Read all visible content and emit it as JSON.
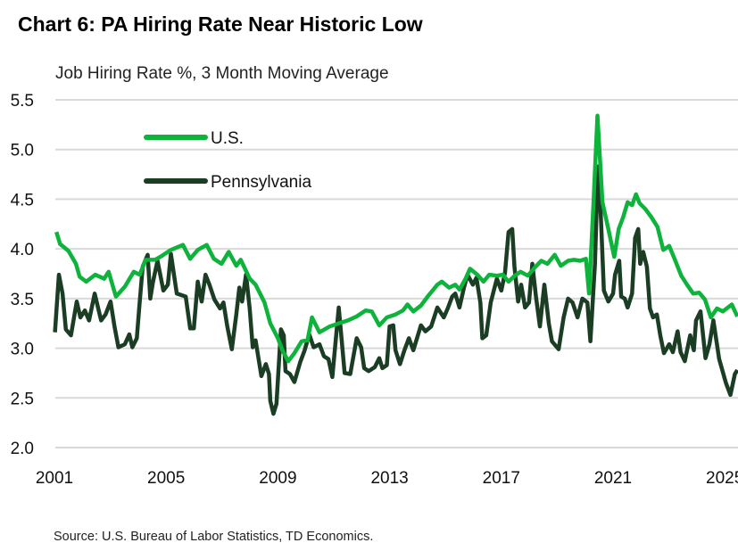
{
  "chart_data": {
    "type": "line",
    "title": "Chart 6: PA Hiring Rate Near Historic Low",
    "subtitle": "Job Hiring Rate %, 3 Month Moving Average",
    "source": "Source: U.S. Bureau of Labor Statistics, TD Economics.",
    "xlabel": "",
    "ylabel": "",
    "ylim": [
      2.0,
      5.5
    ],
    "yticks": [
      "5.5",
      "5.0",
      "4.5",
      "4.0",
      "3.5",
      "3.0",
      "2.5",
      "2.0"
    ],
    "xlim": [
      2001,
      2025.45
    ],
    "xticks": [
      "2001",
      "2005",
      "2009",
      "2013",
      "2017",
      "2021",
      "2025"
    ],
    "grid": "horizontal",
    "legend_position": "top-left",
    "series": [
      {
        "name": "U.S.",
        "color": "#0db33b",
        "points": [
          [
            2001.07,
            4.17
          ],
          [
            2001.2,
            4.05
          ],
          [
            2001.5,
            3.98
          ],
          [
            2001.77,
            3.85
          ],
          [
            2001.9,
            3.72
          ],
          [
            2002.14,
            3.67
          ],
          [
            2002.46,
            3.74
          ],
          [
            2002.78,
            3.7
          ],
          [
            2002.94,
            3.77
          ],
          [
            2003.2,
            3.52
          ],
          [
            2003.52,
            3.62
          ],
          [
            2003.84,
            3.77
          ],
          [
            2004.05,
            3.74
          ],
          [
            2004.27,
            3.89
          ],
          [
            2004.6,
            3.89
          ],
          [
            2004.85,
            3.93
          ],
          [
            2005.17,
            3.99
          ],
          [
            2005.6,
            4.04
          ],
          [
            2005.86,
            3.9
          ],
          [
            2006.13,
            3.99
          ],
          [
            2006.45,
            4.04
          ],
          [
            2006.71,
            3.9
          ],
          [
            2006.98,
            3.85
          ],
          [
            2007.24,
            3.97
          ],
          [
            2007.51,
            3.83
          ],
          [
            2007.67,
            3.89
          ],
          [
            2007.99,
            3.7
          ],
          [
            2008.2,
            3.64
          ],
          [
            2008.52,
            3.46
          ],
          [
            2008.73,
            3.25
          ],
          [
            2009.0,
            3.1
          ],
          [
            2009.16,
            2.98
          ],
          [
            2009.37,
            2.87
          ],
          [
            2009.59,
            2.95
          ],
          [
            2009.85,
            3.07
          ],
          [
            2010.06,
            3.08
          ],
          [
            2010.22,
            3.31
          ],
          [
            2010.49,
            3.16
          ],
          [
            2010.86,
            3.22
          ],
          [
            2011.18,
            3.25
          ],
          [
            2011.5,
            3.28
          ],
          [
            2011.82,
            3.32
          ],
          [
            2012.14,
            3.38
          ],
          [
            2012.36,
            3.37
          ],
          [
            2012.63,
            3.23
          ],
          [
            2012.9,
            3.31
          ],
          [
            2013.21,
            3.34
          ],
          [
            2013.48,
            3.38
          ],
          [
            2013.64,
            3.44
          ],
          [
            2013.85,
            3.37
          ],
          [
            2014.12,
            3.43
          ],
          [
            2014.39,
            3.53
          ],
          [
            2014.71,
            3.64
          ],
          [
            2014.87,
            3.67
          ],
          [
            2015.13,
            3.61
          ],
          [
            2015.35,
            3.64
          ],
          [
            2015.5,
            3.59
          ],
          [
            2015.72,
            3.7
          ],
          [
            2015.88,
            3.8
          ],
          [
            2016.14,
            3.74
          ],
          [
            2016.36,
            3.67
          ],
          [
            2016.57,
            3.74
          ],
          [
            2016.84,
            3.73
          ],
          [
            2017.05,
            3.74
          ],
          [
            2017.26,
            3.67
          ],
          [
            2017.48,
            3.73
          ],
          [
            2017.69,
            3.77
          ],
          [
            2017.95,
            3.73
          ],
          [
            2018.22,
            3.82
          ],
          [
            2018.43,
            3.88
          ],
          [
            2018.65,
            3.85
          ],
          [
            2018.91,
            3.94
          ],
          [
            2019.13,
            3.83
          ],
          [
            2019.39,
            3.88
          ],
          [
            2019.6,
            3.89
          ],
          [
            2019.82,
            3.88
          ],
          [
            2020.03,
            3.9
          ],
          [
            2020.14,
            3.55
          ],
          [
            2020.3,
            4.47
          ],
          [
            2020.44,
            5.34
          ],
          [
            2020.62,
            4.47
          ],
          [
            2020.83,
            4.2
          ],
          [
            2021.04,
            3.92
          ],
          [
            2021.2,
            4.2
          ],
          [
            2021.36,
            4.32
          ],
          [
            2021.52,
            4.47
          ],
          [
            2021.68,
            4.44
          ],
          [
            2021.82,
            4.55
          ],
          [
            2021.95,
            4.46
          ],
          [
            2022.16,
            4.4
          ],
          [
            2022.37,
            4.32
          ],
          [
            2022.59,
            4.22
          ],
          [
            2022.8,
            3.99
          ],
          [
            2023.01,
            4.03
          ],
          [
            2023.23,
            3.88
          ],
          [
            2023.44,
            3.73
          ],
          [
            2023.65,
            3.64
          ],
          [
            2023.87,
            3.55
          ],
          [
            2024.08,
            3.56
          ],
          [
            2024.29,
            3.49
          ],
          [
            2024.5,
            3.31
          ],
          [
            2024.72,
            3.4
          ],
          [
            2024.93,
            3.37
          ],
          [
            2025.25,
            3.44
          ],
          [
            2025.45,
            3.32
          ]
        ]
      },
      {
        "name": "Pennsylvania",
        "color": "#1a3d24",
        "points": [
          [
            2001.02,
            3.16
          ],
          [
            2001.16,
            3.74
          ],
          [
            2001.29,
            3.55
          ],
          [
            2001.41,
            3.19
          ],
          [
            2001.59,
            3.13
          ],
          [
            2001.8,
            3.47
          ],
          [
            2001.93,
            3.31
          ],
          [
            2002.09,
            3.38
          ],
          [
            2002.24,
            3.28
          ],
          [
            2002.44,
            3.55
          ],
          [
            2002.67,
            3.28
          ],
          [
            2002.83,
            3.34
          ],
          [
            2003.01,
            3.47
          ],
          [
            2003.15,
            3.22
          ],
          [
            2003.29,
            3.01
          ],
          [
            2003.52,
            3.04
          ],
          [
            2003.68,
            3.14
          ],
          [
            2003.79,
            3.01
          ],
          [
            2003.95,
            3.1
          ],
          [
            2004.05,
            3.46
          ],
          [
            2004.16,
            3.82
          ],
          [
            2004.34,
            3.94
          ],
          [
            2004.43,
            3.5
          ],
          [
            2004.53,
            3.67
          ],
          [
            2004.69,
            3.88
          ],
          [
            2004.9,
            3.58
          ],
          [
            2005.06,
            3.64
          ],
          [
            2005.17,
            3.95
          ],
          [
            2005.38,
            3.55
          ],
          [
            2005.7,
            3.52
          ],
          [
            2005.86,
            3.2
          ],
          [
            2005.99,
            3.2
          ],
          [
            2006.13,
            3.67
          ],
          [
            2006.27,
            3.47
          ],
          [
            2006.41,
            3.74
          ],
          [
            2006.55,
            3.64
          ],
          [
            2006.73,
            3.49
          ],
          [
            2006.93,
            3.4
          ],
          [
            2007.05,
            3.46
          ],
          [
            2007.19,
            3.22
          ],
          [
            2007.35,
            2.99
          ],
          [
            2007.51,
            3.34
          ],
          [
            2007.62,
            3.61
          ],
          [
            2007.72,
            3.47
          ],
          [
            2007.86,
            3.74
          ],
          [
            2007.99,
            3.4
          ],
          [
            2008.1,
            3.01
          ],
          [
            2008.2,
            3.08
          ],
          [
            2008.41,
            2.72
          ],
          [
            2008.57,
            2.84
          ],
          [
            2008.68,
            2.74
          ],
          [
            2008.73,
            2.47
          ],
          [
            2008.84,
            2.34
          ],
          [
            2008.95,
            2.44
          ],
          [
            2009.11,
            3.19
          ],
          [
            2009.21,
            3.13
          ],
          [
            2009.27,
            2.77
          ],
          [
            2009.43,
            2.74
          ],
          [
            2009.59,
            2.66
          ],
          [
            2009.8,
            2.86
          ],
          [
            2009.96,
            2.98
          ],
          [
            2010.12,
            3.14
          ],
          [
            2010.28,
            3.01
          ],
          [
            2010.49,
            3.04
          ],
          [
            2010.65,
            2.92
          ],
          [
            2010.81,
            2.89
          ],
          [
            2010.95,
            2.71
          ],
          [
            2011.18,
            3.41
          ],
          [
            2011.39,
            2.75
          ],
          [
            2011.59,
            2.74
          ],
          [
            2011.82,
            3.1
          ],
          [
            2011.98,
            3.01
          ],
          [
            2012.09,
            2.8
          ],
          [
            2012.25,
            2.77
          ],
          [
            2012.47,
            2.81
          ],
          [
            2012.63,
            2.9
          ],
          [
            2012.74,
            2.8
          ],
          [
            2012.9,
            2.83
          ],
          [
            2013.0,
            3.22
          ],
          [
            2013.13,
            3.23
          ],
          [
            2013.21,
            2.98
          ],
          [
            2013.37,
            2.84
          ],
          [
            2013.53,
            2.98
          ],
          [
            2013.69,
            3.1
          ],
          [
            2013.85,
            2.98
          ],
          [
            2014.12,
            3.23
          ],
          [
            2014.28,
            3.17
          ],
          [
            2014.49,
            3.22
          ],
          [
            2014.71,
            3.41
          ],
          [
            2014.94,
            3.31
          ],
          [
            2015.08,
            3.4
          ],
          [
            2015.24,
            3.52
          ],
          [
            2015.35,
            3.55
          ],
          [
            2015.5,
            3.41
          ],
          [
            2015.66,
            3.61
          ],
          [
            2015.79,
            3.74
          ],
          [
            2015.98,
            3.64
          ],
          [
            2016.11,
            3.71
          ],
          [
            2016.25,
            3.46
          ],
          [
            2016.32,
            3.1
          ],
          [
            2016.46,
            3.13
          ],
          [
            2016.62,
            3.46
          ],
          [
            2016.84,
            3.7
          ],
          [
            2017.0,
            3.58
          ],
          [
            2017.13,
            3.76
          ],
          [
            2017.26,
            4.17
          ],
          [
            2017.39,
            4.2
          ],
          [
            2017.47,
            3.82
          ],
          [
            2017.6,
            3.47
          ],
          [
            2017.71,
            3.64
          ],
          [
            2017.85,
            3.41
          ],
          [
            2017.99,
            3.46
          ],
          [
            2018.11,
            3.85
          ],
          [
            2018.24,
            3.52
          ],
          [
            2018.38,
            3.22
          ],
          [
            2018.54,
            3.64
          ],
          [
            2018.7,
            3.25
          ],
          [
            2018.81,
            3.07
          ],
          [
            2019.05,
            2.99
          ],
          [
            2019.23,
            3.31
          ],
          [
            2019.39,
            3.5
          ],
          [
            2019.55,
            3.46
          ],
          [
            2019.73,
            3.31
          ],
          [
            2019.9,
            3.5
          ],
          [
            2020.08,
            3.46
          ],
          [
            2020.19,
            3.07
          ],
          [
            2020.35,
            3.85
          ],
          [
            2020.46,
            4.83
          ],
          [
            2020.56,
            4.35
          ],
          [
            2020.67,
            3.58
          ],
          [
            2020.83,
            3.47
          ],
          [
            2021.0,
            3.55
          ],
          [
            2021.07,
            3.74
          ],
          [
            2021.22,
            3.88
          ],
          [
            2021.29,
            3.52
          ],
          [
            2021.42,
            3.5
          ],
          [
            2021.52,
            3.41
          ],
          [
            2021.68,
            3.55
          ],
          [
            2021.79,
            4.11
          ],
          [
            2021.9,
            4.2
          ],
          [
            2021.97,
            3.85
          ],
          [
            2022.08,
            3.97
          ],
          [
            2022.21,
            3.82
          ],
          [
            2022.32,
            3.4
          ],
          [
            2022.43,
            3.31
          ],
          [
            2022.57,
            3.34
          ],
          [
            2022.69,
            3.13
          ],
          [
            2022.82,
            2.95
          ],
          [
            2023.01,
            3.04
          ],
          [
            2023.14,
            2.96
          ],
          [
            2023.31,
            3.17
          ],
          [
            2023.42,
            2.96
          ],
          [
            2023.57,
            2.87
          ],
          [
            2023.76,
            3.13
          ],
          [
            2023.89,
            2.98
          ],
          [
            2023.97,
            3.28
          ],
          [
            2024.13,
            3.37
          ],
          [
            2024.31,
            2.9
          ],
          [
            2024.45,
            3.04
          ],
          [
            2024.59,
            3.28
          ],
          [
            2024.8,
            2.89
          ],
          [
            2025.04,
            2.65
          ],
          [
            2025.2,
            2.53
          ],
          [
            2025.36,
            2.74
          ],
          [
            2025.45,
            2.78
          ]
        ]
      }
    ]
  }
}
